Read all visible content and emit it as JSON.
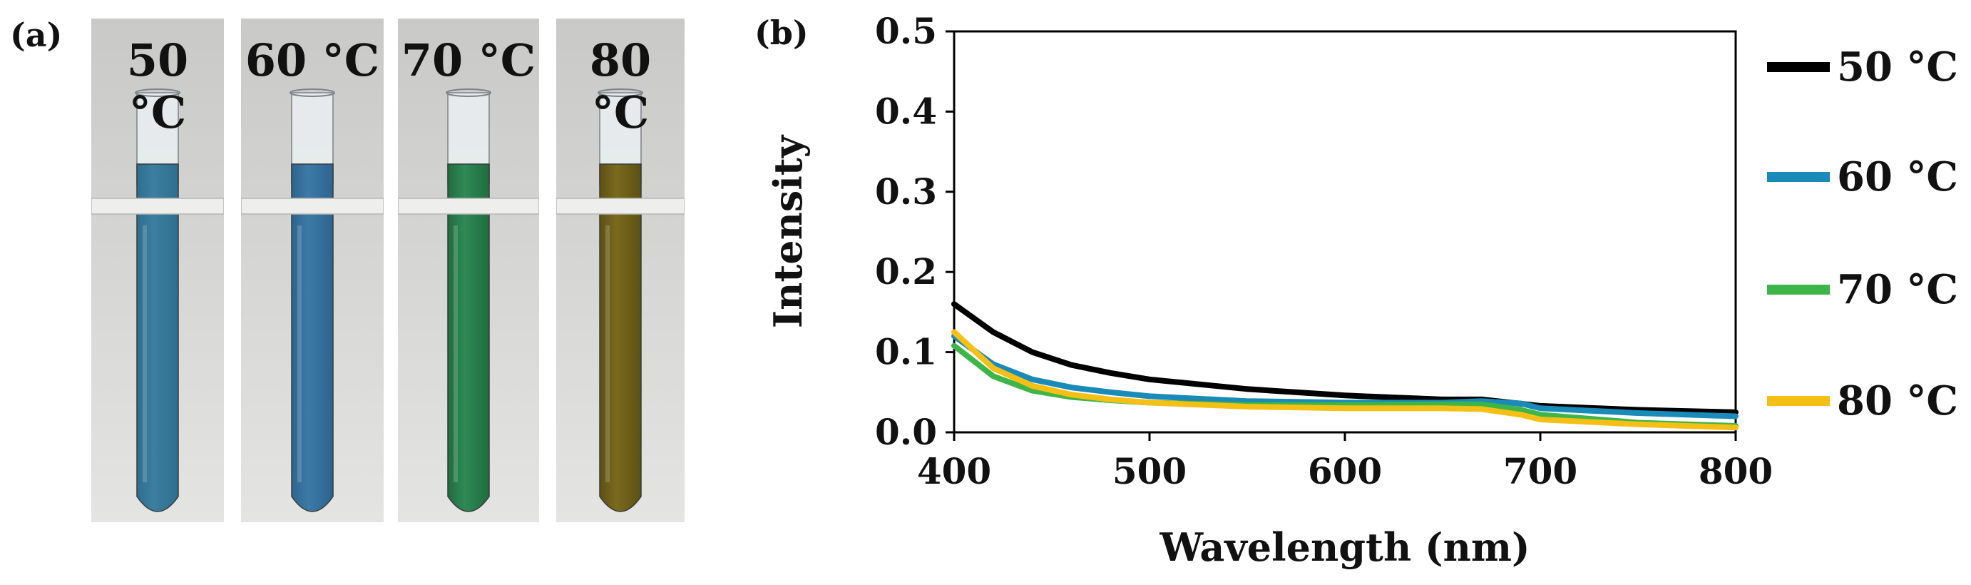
{
  "panel_a": {
    "label": "(a)",
    "photos": [
      {
        "label": "50 °C",
        "liquid_color": "#3c7fa0",
        "liquid_dark": "#2f6d8e"
      },
      {
        "label": "60 °C",
        "liquid_color": "#3d7aa6",
        "liquid_dark": "#2d6490"
      },
      {
        "label": "70 °C",
        "liquid_color": "#2f8a55",
        "liquid_dark": "#1f6c3f"
      },
      {
        "label": "80 °C",
        "liquid_color": "#7a6a1e",
        "liquid_dark": "#5c5014"
      }
    ]
  },
  "panel_b": {
    "label": "(b)"
  },
  "chart_data": {
    "type": "line",
    "title": "",
    "xlabel": "Wavelength (nm)",
    "ylabel": "Intensity",
    "xlim": [
      400,
      800
    ],
    "ylim": [
      0.0,
      0.5
    ],
    "xticks": [
      400,
      500,
      600,
      700,
      800
    ],
    "yticks": [
      0.0,
      0.1,
      0.2,
      0.3,
      0.4,
      0.5
    ],
    "xtick_labels": [
      "400",
      "500",
      "600",
      "700",
      "800"
    ],
    "ytick_labels": [
      "0.0",
      "0.1",
      "0.2",
      "0.3",
      "0.4",
      "0.5"
    ],
    "grid": false,
    "legend": "right",
    "series": [
      {
        "name": "50 °C",
        "color": "#000000",
        "x": [
          400,
          420,
          440,
          460,
          480,
          500,
          550,
          600,
          650,
          670,
          700,
          750,
          800
        ],
        "y": [
          0.16,
          0.125,
          0.1,
          0.084,
          0.074,
          0.066,
          0.054,
          0.046,
          0.041,
          0.041,
          0.033,
          0.028,
          0.025
        ]
      },
      {
        "name": "60 °C",
        "color": "#1a8ab8",
        "x": [
          400,
          420,
          440,
          460,
          480,
          500,
          550,
          600,
          650,
          670,
          690,
          700,
          750,
          800
        ],
        "y": [
          0.12,
          0.085,
          0.066,
          0.056,
          0.05,
          0.045,
          0.039,
          0.037,
          0.037,
          0.039,
          0.036,
          0.03,
          0.024,
          0.02
        ]
      },
      {
        "name": "70 °C",
        "color": "#3db548",
        "x": [
          400,
          420,
          440,
          460,
          480,
          500,
          550,
          600,
          650,
          670,
          690,
          700,
          750,
          800
        ],
        "y": [
          0.108,
          0.07,
          0.052,
          0.044,
          0.04,
          0.037,
          0.034,
          0.034,
          0.035,
          0.035,
          0.028,
          0.022,
          0.012,
          0.008
        ]
      },
      {
        "name": "80 °C",
        "color": "#f5c015",
        "x": [
          400,
          420,
          440,
          460,
          480,
          500,
          550,
          600,
          650,
          670,
          690,
          700,
          750,
          800
        ],
        "y": [
          0.125,
          0.08,
          0.058,
          0.047,
          0.041,
          0.037,
          0.032,
          0.03,
          0.03,
          0.029,
          0.022,
          0.016,
          0.01,
          0.006
        ]
      }
    ]
  }
}
